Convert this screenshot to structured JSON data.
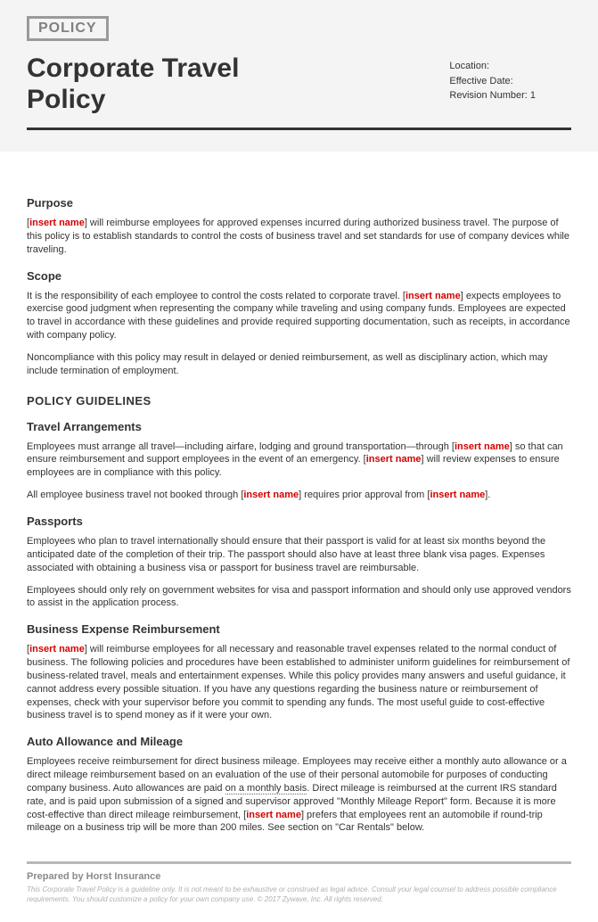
{
  "tag": "POLICY",
  "title": "Corporate Travel Policy",
  "meta": {
    "location_label": "Location:",
    "location_value": "",
    "effective_label": "Effective Date:",
    "effective_value": "",
    "revision_label": "Revision Number:",
    "revision_value": "1"
  },
  "placeholder": "insert name",
  "sections": {
    "purpose": {
      "heading": "Purpose",
      "p1a": "[",
      "p1b": "] will reimburse employees for approved expenses incurred during authorized business travel. The purpose of this policy is to establish standards to control the costs of business travel and set standards for use of company devices while traveling."
    },
    "scope": {
      "heading": "Scope",
      "p1a": "It is the responsibility of each employee to control the costs related to corporate travel. [",
      "p1b": "] expects employees to exercise good judgment when representing the company while traveling and using company funds. Employees are expected to travel in accordance with these guidelines and provide required supporting documentation, such as receipts, in accordance with company policy.",
      "p2": "Noncompliance with this policy may result in delayed or denied reimbursement, as well as disciplinary action, which may include termination of employment."
    },
    "guidelines_heading": "POLICY GUIDELINES",
    "travel": {
      "heading": "Travel Arrangements",
      "p1a": "Employees must arrange all travel—including airfare, lodging and ground transportation—through [",
      "p1b": "] so that can ensure reimbursement and support employees in the event of an emergency. [",
      "p1c": "] will review expenses to ensure employees are in compliance with this policy.",
      "p2a": "All employee business travel not booked through [",
      "p2b": "] requires prior approval from [",
      "p2c": "]."
    },
    "passports": {
      "heading": "Passports",
      "p1": "Employees who plan to travel internationally should ensure that their passport is valid for at least six months beyond the anticipated date of the completion of their trip. The passport should also have at least three blank visa pages. Expenses associated with obtaining a business visa or passport for business travel are reimbursable.",
      "p2": "Employees should only rely on government websites for visa and passport information and should only use approved vendors to assist in the application process."
    },
    "expense": {
      "heading": "Business Expense Reimbursement",
      "p1a": "[",
      "p1b": "] will reimburse employees for all necessary and reasonable travel expenses related to the normal conduct of business. The following policies and procedures have been established to administer uniform guidelines for reimbursement of business-related travel, meals and entertainment expenses. While this policy provides many answers and useful guidance, it cannot address every possible situation. If you have any questions regarding the business nature or reimbursement of expenses, check with your supervisor before you commit to spending any funds. The most useful guide to cost-effective business travel is to spend money as if it were your own."
    },
    "auto": {
      "heading": "Auto Allowance and Mileage",
      "p1a": "Employees receive reimbursement for direct business mileage. Employees may receive either a monthly auto allowance or a direct mileage reimbursement based on an evaluation of the use of their personal automobile for purposes of conducting company business. Auto allowances are paid ",
      "p1_dotted": "on a monthly basis",
      "p1b": ". Direct mileage is reimbursed at the current IRS standard rate, and is paid upon submission of a signed and supervisor approved \"Monthly Mileage Report\" form. Because it is more cost-effective than direct mileage reimbursement, [",
      "p1c": "] prefers that employees rent an automobile if round-trip mileage on a business trip will be more than 200 miles. See section on \"Car Rentals\" below."
    }
  },
  "footer": {
    "prepared": "Prepared by Horst Insurance",
    "disclaimer": "This Corporate Travel Policy is a guideline only. It is not meant to be exhaustive or construed as legal advice. Consult your legal counsel to address possible compliance requirements. You should customize a policy for your own company use. © 2017 Zywave, Inc. All rights reserved."
  },
  "colors": {
    "placeholder": "#d40000",
    "text": "#333333",
    "header_bg": "#f4f4f4",
    "tag_border": "#9a9a9a",
    "footer_rule": "#b8b8b8",
    "disclaimer": "#b0b0b0"
  }
}
